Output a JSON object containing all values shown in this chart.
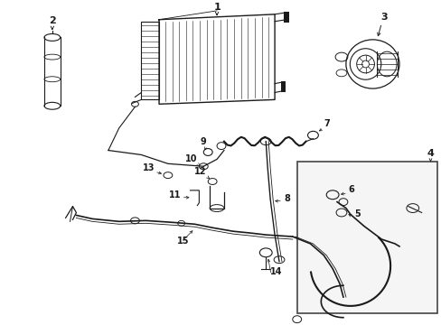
{
  "background_color": "#ffffff",
  "line_color": "#1a1a1a",
  "fig_width": 4.89,
  "fig_height": 3.6,
  "dpi": 100,
  "label_fontsize": 8,
  "small_fontsize": 7
}
